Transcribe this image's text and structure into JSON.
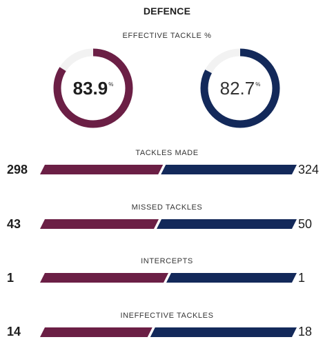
{
  "section_title": "DEFENCE",
  "colors": {
    "home": "#6b1f45",
    "away": "#13295a",
    "track": "#f2f2f2",
    "text": "#1e1e1e"
  },
  "effective_tackle": {
    "label": "EFFECTIVE TACKLE %",
    "home": {
      "value": "83.9",
      "unit": "%",
      "fraction": 0.839
    },
    "away": {
      "value": "82.7",
      "unit": "%",
      "fraction": 0.827
    }
  },
  "stats": [
    {
      "label": "TACKLES MADE",
      "home": "298",
      "away": "324"
    },
    {
      "label": "MISSED TACKLES",
      "home": "43",
      "away": "50"
    },
    {
      "label": "INTERCEPTS",
      "home": "1",
      "away": "1"
    },
    {
      "label": "INEFFECTIVE TACKLES",
      "home": "14",
      "away": "18"
    }
  ]
}
